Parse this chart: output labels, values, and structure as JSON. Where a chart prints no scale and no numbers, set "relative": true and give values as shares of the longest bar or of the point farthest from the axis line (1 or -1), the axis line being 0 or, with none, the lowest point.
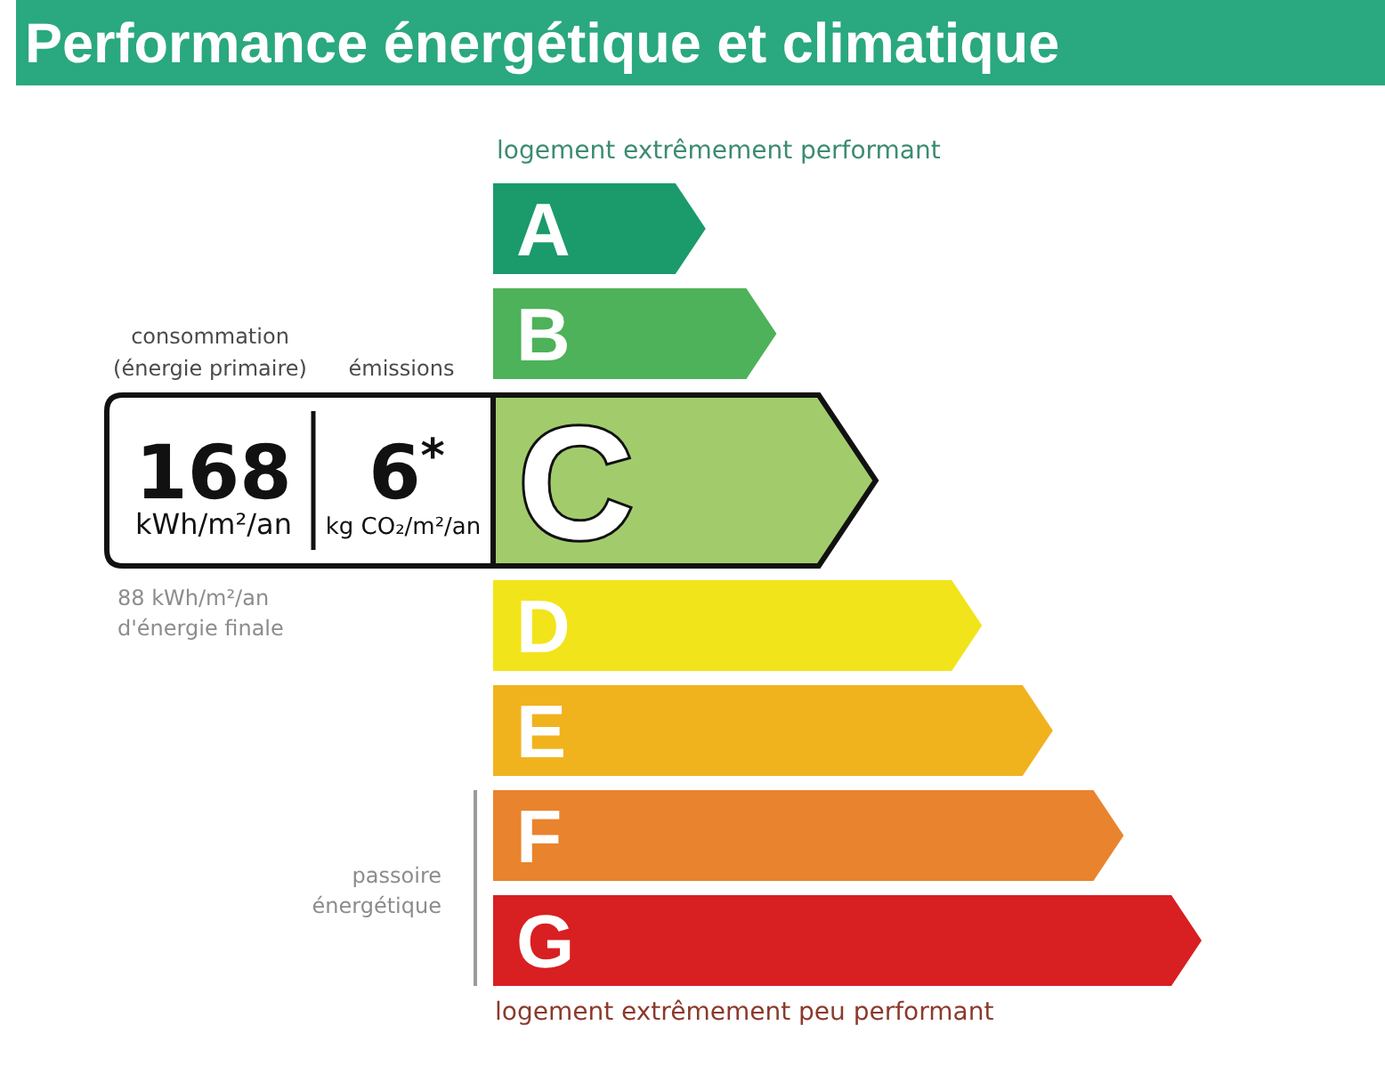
{
  "chart_data": {
    "type": "bar",
    "orientation": "horizontal",
    "relative": true,
    "title": "Performance énergétique et climatique",
    "categories": [
      "A",
      "B",
      "C",
      "D",
      "E",
      "F",
      "G"
    ],
    "values": [
      0.3,
      0.4,
      0.54,
      0.69,
      0.79,
      0.89,
      1
    ],
    "colors": [
      "#1b9a6b",
      "#4db259",
      "#a2cc6c",
      "#f2e41a",
      "#f0b31e",
      "#e9832d",
      "#d81f22"
    ],
    "annotations": [
      "logement extrêmement performant",
      "consommation\n(énergie primaire)",
      "émissions",
      "168",
      "kWh/m²/an",
      "6$^{*}$",
      "kg CO₂/m²/an",
      "88 kWh/m²/an\nd'énergie finale",
      "passoire\nénergétique",
      "logement extrêmement peu performant"
    ]
  }
}
